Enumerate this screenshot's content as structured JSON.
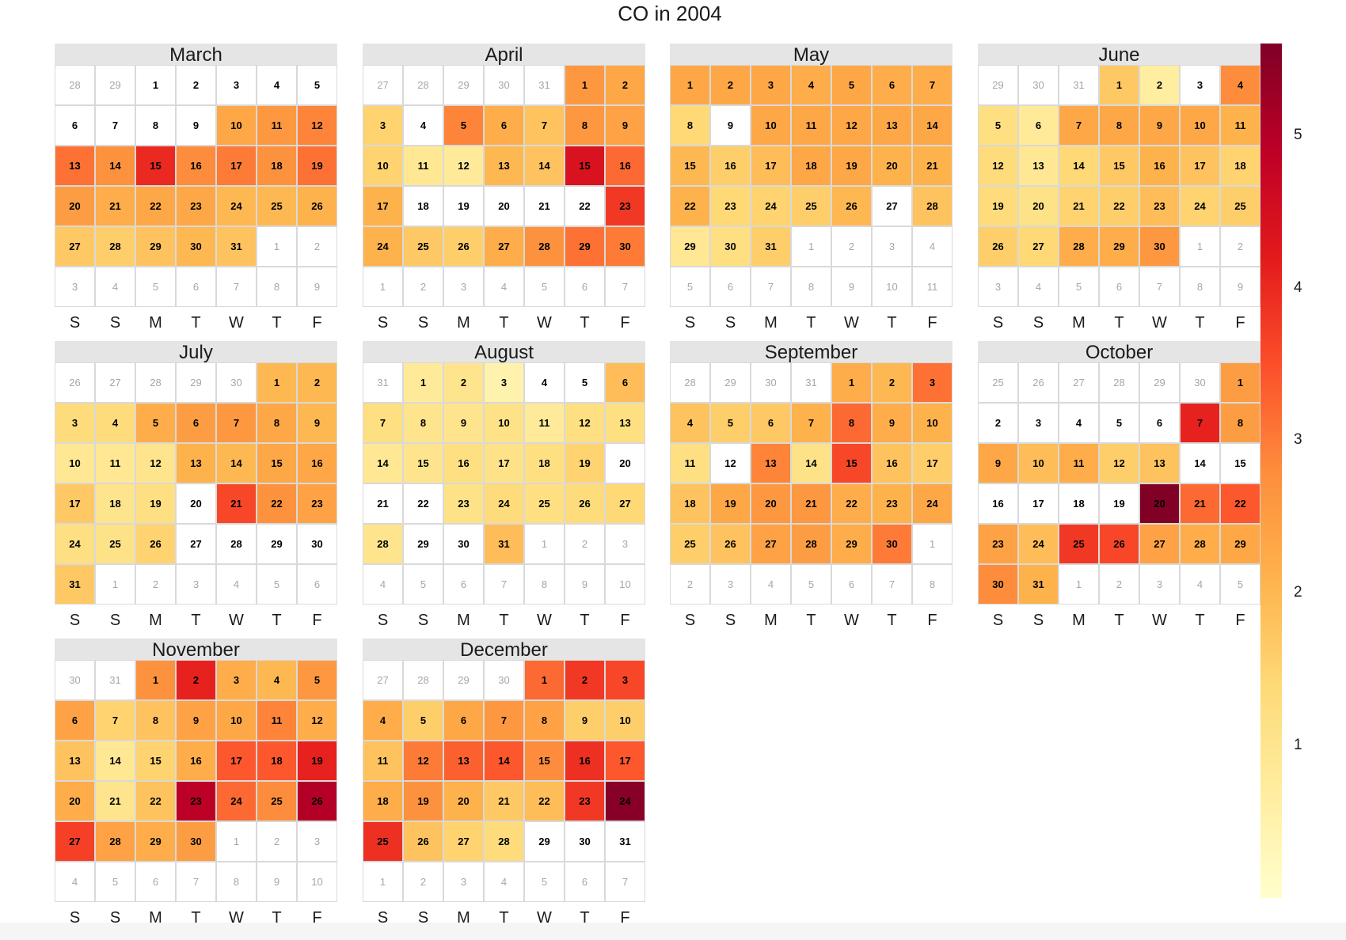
{
  "title": "CO in 2004",
  "weekdays": [
    "S",
    "S",
    "M",
    "T",
    "W",
    "T",
    "F"
  ],
  "colorbar": {
    "ticks": [
      {
        "value": 1,
        "label": "1"
      },
      {
        "value": 2,
        "label": "2"
      },
      {
        "value": 3,
        "label": "3"
      },
      {
        "value": 4,
        "label": "4"
      },
      {
        "value": 5,
        "label": "5"
      }
    ],
    "range": [
      0,
      5.6
    ],
    "colors": [
      "#ffffcc",
      "#ffeda0",
      "#fed976",
      "#feb24c",
      "#fd8d3c",
      "#fc4e2a",
      "#e31a1c",
      "#bd0026",
      "#800026"
    ]
  },
  "chart_data": {
    "type": "heatmap",
    "title": "CO in 2004",
    "year": 2004,
    "colorbar_ticks": [
      1,
      2,
      3,
      4,
      5
    ],
    "months": [
      {
        "name": "March",
        "month": 3,
        "values": [
          null,
          null,
          null,
          null,
          null,
          null,
          null,
          null,
          null,
          2.3,
          2.6,
          2.9,
          3.1,
          2.7,
          4.0,
          2.8,
          3.0,
          2.7,
          3.1,
          2.5,
          2.2,
          2.3,
          2.3,
          2.0,
          2.0,
          2.1,
          1.7,
          1.6,
          1.8,
          2.0,
          1.8
        ]
      },
      {
        "name": "April",
        "month": 4,
        "values": [
          2.6,
          2.3,
          1.5,
          0.0,
          2.9,
          2.2,
          1.8,
          2.6,
          2.4,
          1.5,
          0.9,
          0.8,
          2.0,
          1.8,
          4.4,
          3.2,
          2.1,
          0.0,
          0.0,
          0.0,
          0.0,
          0.0,
          3.8,
          2.1,
          1.7,
          1.6,
          2.2,
          2.7,
          3.1,
          3.0
        ]
      },
      {
        "name": "May",
        "month": 5,
        "values": [
          2.3,
          2.3,
          2.3,
          2.2,
          2.3,
          2.2,
          2.2,
          1.4,
          0.0,
          2.3,
          2.3,
          2.3,
          2.3,
          2.3,
          2.0,
          1.6,
          1.9,
          2.3,
          2.3,
          2.1,
          2.1,
          2.1,
          1.4,
          1.5,
          1.6,
          2.0,
          0.0,
          1.8,
          0.9,
          1.2,
          1.6
        ]
      },
      {
        "name": "June",
        "month": 6,
        "values": [
          1.7,
          0.7,
          0.0,
          2.8,
          1.2,
          0.8,
          2.3,
          2.3,
          2.3,
          2.3,
          2.1,
          1.3,
          0.9,
          1.4,
          1.7,
          2.1,
          1.8,
          1.5,
          1.3,
          1.1,
          1.5,
          1.6,
          1.9,
          1.5,
          1.6,
          1.6,
          1.4,
          2.2,
          2.2,
          2.6
        ]
      },
      {
        "name": "July",
        "month": 7,
        "values": [
          2.0,
          2.0,
          1.3,
          1.3,
          2.2,
          2.5,
          2.6,
          2.3,
          2.0,
          0.9,
          0.9,
          1.0,
          2.1,
          2.0,
          2.3,
          2.3,
          1.7,
          1.0,
          1.2,
          0.0,
          3.6,
          2.7,
          2.4,
          1.2,
          1.1,
          1.5,
          0.0,
          0.0,
          0.0,
          0.0,
          1.7
        ]
      },
      {
        "name": "August",
        "month": 8,
        "values": [
          0.8,
          1.0,
          0.5,
          0.0,
          0.0,
          1.9,
          1.2,
          1.0,
          1.0,
          1.1,
          0.8,
          1.2,
          1.2,
          0.9,
          1.0,
          1.2,
          1.1,
          1.2,
          1.5,
          0.0,
          0.0,
          0.0,
          1.1,
          1.3,
          1.2,
          1.3,
          1.4,
          1.0,
          0.0,
          0.0,
          1.9
        ]
      },
      {
        "name": "September",
        "month": 9,
        "values": [
          2.2,
          2.0,
          3.1,
          1.8,
          1.6,
          1.7,
          2.1,
          3.2,
          2.2,
          2.1,
          1.2,
          0.0,
          2.9,
          1.1,
          3.6,
          1.8,
          1.6,
          1.8,
          2.3,
          2.6,
          2.6,
          2.2,
          2.1,
          2.3,
          1.6,
          1.8,
          2.4,
          2.5,
          2.2,
          3.0
        ]
      },
      {
        "name": "October",
        "month": 10,
        "values": [
          2.5,
          0.0,
          0.0,
          0.0,
          0.0,
          0.0,
          4.1,
          2.5,
          2.3,
          1.9,
          2.2,
          1.6,
          1.8,
          0.0,
          0.0,
          0.0,
          0.0,
          0.0,
          0.0,
          5.6,
          3.2,
          3.4,
          2.4,
          1.9,
          3.8,
          3.6,
          2.4,
          2.2,
          2.3,
          2.8,
          2.1
        ]
      },
      {
        "name": "November",
        "month": 11,
        "values": [
          2.7,
          4.1,
          2.2,
          2.0,
          2.6,
          2.4,
          1.5,
          1.8,
          2.4,
          2.3,
          2.9,
          2.2,
          1.8,
          0.9,
          1.5,
          2.2,
          3.4,
          3.4,
          4.1,
          2.2,
          1.0,
          1.8,
          4.9,
          3.2,
          2.8,
          5.0,
          3.7,
          2.4,
          2.2,
          2.5
        ]
      },
      {
        "name": "December",
        "month": 12,
        "values": [
          3.2,
          3.8,
          3.6,
          2.2,
          1.6,
          2.3,
          2.6,
          2.4,
          1.6,
          1.6,
          1.8,
          3.0,
          3.3,
          3.4,
          2.8,
          3.9,
          3.4,
          2.2,
          2.7,
          2.1,
          1.7,
          1.9,
          3.8,
          5.5,
          3.9,
          1.8,
          1.5,
          1.3,
          0.0,
          0.0,
          0.0
        ]
      }
    ]
  }
}
